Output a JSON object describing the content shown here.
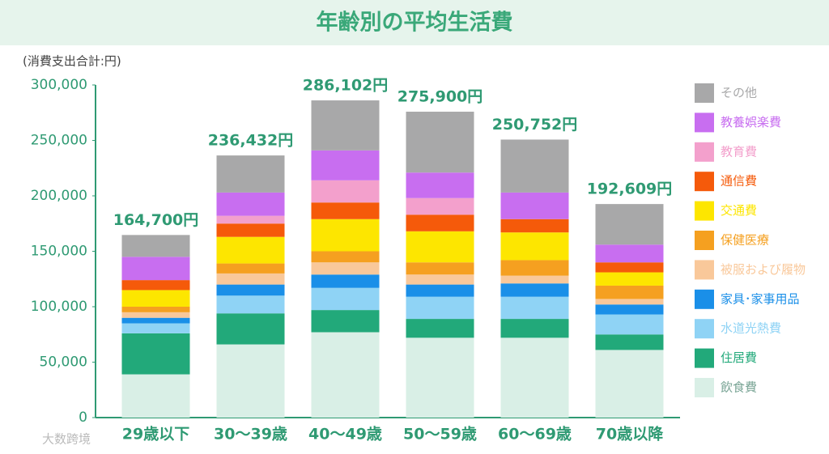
{
  "chart_data": {
    "type": "stacked_bar",
    "title": "年齢別の平均生活費",
    "y_label": "(消費支出合計:円)",
    "watermark": "大数跨境",
    "categories": [
      "29歳以下",
      "30～39歳",
      "40～49歳",
      "50～59歳",
      "60～69歳",
      "70歳以降"
    ],
    "series": [
      {
        "name": "飲食費",
        "color": "#d9efe6",
        "values": [
          39000,
          66000,
          77000,
          72000,
          72000,
          61000
        ]
      },
      {
        "name": "住居費",
        "color": "#22a97a",
        "values": [
          37000,
          28000,
          20000,
          17000,
          17000,
          14000
        ]
      },
      {
        "name": "水道光熱費",
        "color": "#8fd3f5",
        "values": [
          9000,
          16000,
          20000,
          20000,
          20000,
          18000
        ]
      },
      {
        "name": "家具･家事用品",
        "color": "#1a8fe8",
        "values": [
          5000,
          10000,
          12000,
          11000,
          12000,
          9000
        ]
      },
      {
        "name": "被服および履物",
        "color": "#f9c89a",
        "values": [
          5000,
          10000,
          11000,
          9000,
          7000,
          5000
        ]
      },
      {
        "name": "保健医療",
        "color": "#f5a020",
        "values": [
          5000,
          9000,
          10000,
          11000,
          14000,
          12000
        ]
      },
      {
        "name": "交通費",
        "color": "#fde600",
        "values": [
          15000,
          24000,
          29000,
          28000,
          25000,
          12000
        ]
      },
      {
        "name": "通信費",
        "color": "#f55a0a",
        "values": [
          9000,
          12000,
          15000,
          15000,
          12000,
          9000
        ]
      },
      {
        "name": "教育費",
        "color": "#f3a0cc",
        "values": [
          0,
          7000,
          20000,
          15000,
          0,
          0
        ]
      },
      {
        "name": "教養娯楽費",
        "color": "#c86ef0",
        "values": [
          21000,
          21000,
          27000,
          23000,
          24000,
          16000
        ]
      },
      {
        "name": "その他",
        "color": "#a8a8a9",
        "values": [
          19700,
          33432,
          45102,
          54900,
          47752,
          36609
        ]
      }
    ],
    "totals": {
      "values": [
        164700,
        236432,
        286102,
        275900,
        250752,
        192609
      ],
      "value_labels": [
        "164,700円",
        "236,432円",
        "286,102円",
        "275,900円",
        "250,752円",
        "192,609円"
      ]
    },
    "ylim": [
      0,
      300000
    ],
    "yticks": [
      0,
      {
        "value": 50000,
        "label": "50,000"
      },
      {
        "value": 100000,
        "label": "100,000"
      },
      {
        "value": 150000,
        "label": "150,000"
      },
      {
        "value": 200000,
        "label": "200,000"
      },
      {
        "value": 250000,
        "label": "250,000"
      },
      {
        "value": 300000,
        "label": "300,000"
      }
    ]
  }
}
